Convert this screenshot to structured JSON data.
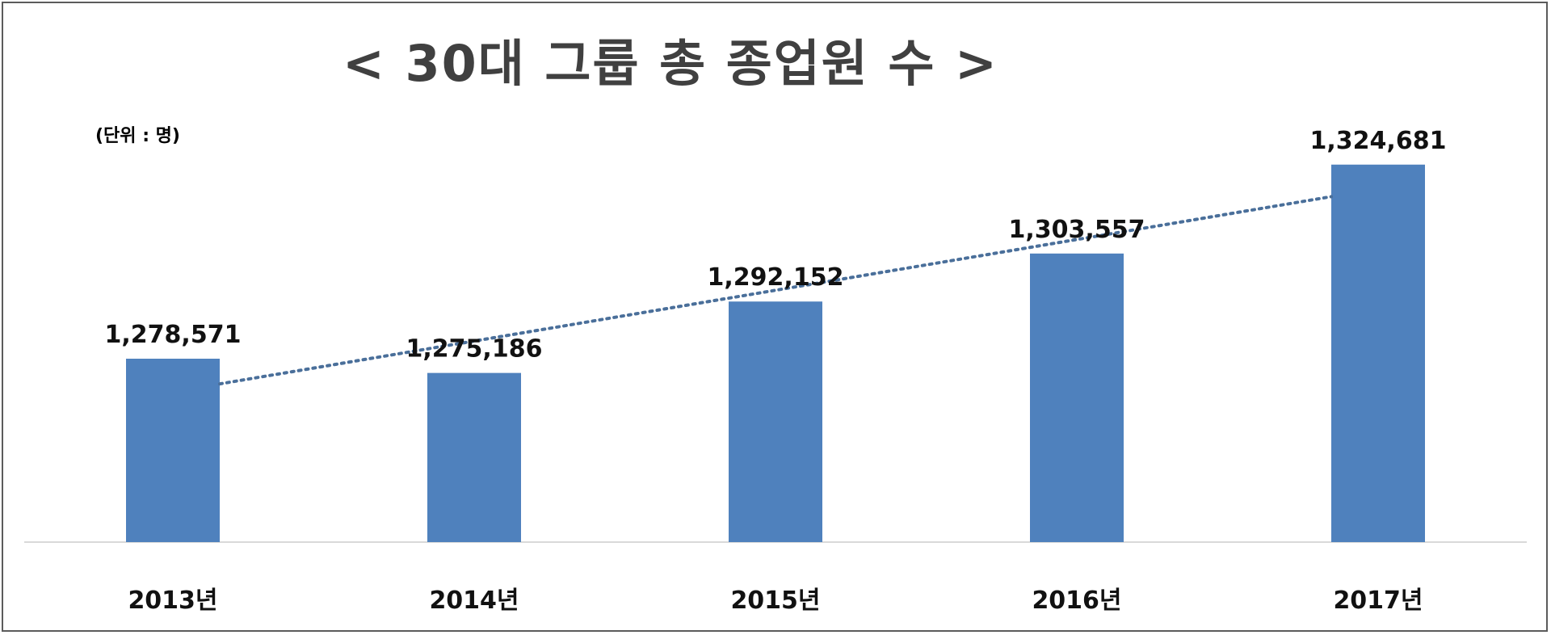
{
  "chart_data": {
    "type": "bar",
    "title": "< 30대 그룹  총 종업원 수 >",
    "unit_label": "(단위 : 명)",
    "categories": [
      "2013년",
      "2014년",
      "2015년",
      "2016년",
      "2017년"
    ],
    "value_labels": [
      "1,278,571",
      "1,275,186",
      "1,292,152",
      "1,303,557",
      "1,324,681"
    ],
    "values": [
      1278571,
      1275186,
      1292152,
      1303557,
      1324681
    ],
    "ylim": [
      1235000,
      1335000
    ],
    "trendline": {
      "type": "linear",
      "style": "dotted"
    },
    "bar_color": "#4f81bd",
    "trend_color": "#4a6f9a",
    "grid": false,
    "legend": "none"
  }
}
